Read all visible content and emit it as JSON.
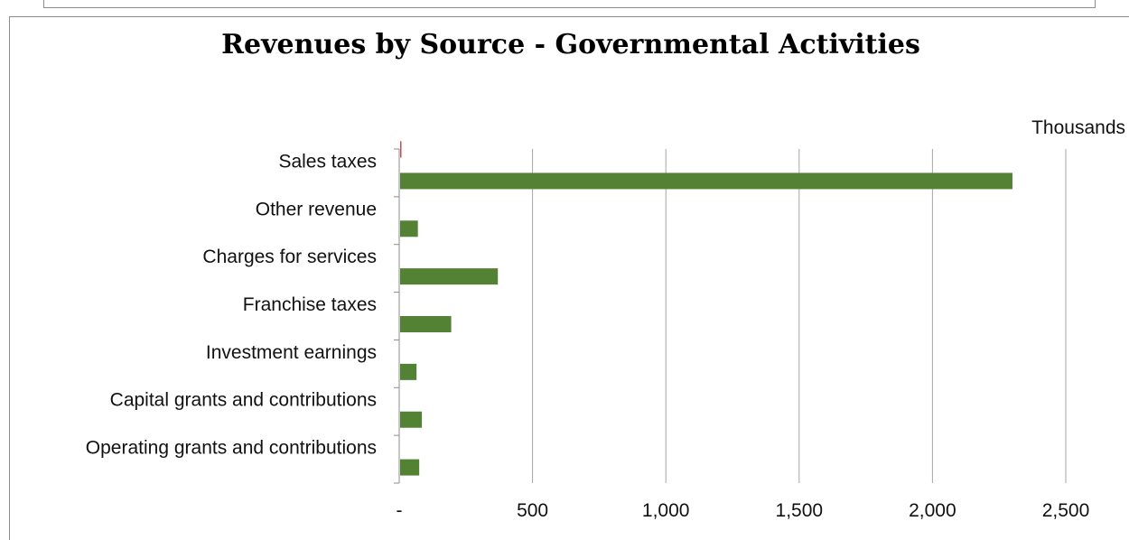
{
  "chart_data": {
    "type": "bar",
    "orientation": "horizontal",
    "title": "Revenues by Source - Governmental Activities",
    "units_label": "Thousands",
    "categories": [
      "Sales taxes",
      "Other revenue",
      "Charges for services",
      "Franchise taxes",
      "Investment earnings",
      "Capital grants and contributions",
      "Operating grants and contributions"
    ],
    "series": [
      {
        "color": "#c0504d",
        "values": [
          5,
          0,
          0,
          0,
          0,
          0,
          0
        ]
      },
      {
        "color": "#548235",
        "values": [
          2300,
          70,
          370,
          195,
          65,
          85,
          75
        ]
      }
    ],
    "xlim": [
      0,
      2500
    ],
    "xticks": [
      0,
      500,
      1000,
      1500,
      2000,
      2500
    ],
    "xtick_labels": [
      "-",
      "500",
      "1,000",
      "1,500",
      "2,000",
      "2,500"
    ],
    "grid": "vertical",
    "legend": "none"
  }
}
